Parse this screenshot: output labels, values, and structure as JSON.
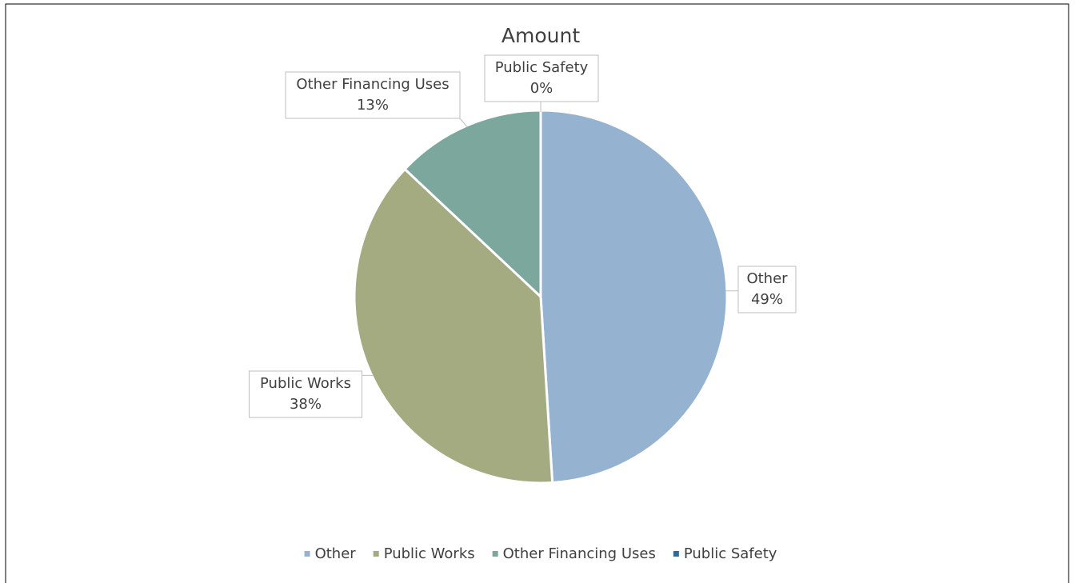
{
  "chart_data": {
    "type": "pie",
    "title": "Amount",
    "categories": [
      "Other",
      "Public Works",
      "Other Financing Uses",
      "Public Safety"
    ],
    "values": [
      49,
      38,
      13,
      0
    ],
    "value_labels": [
      "49%",
      "38%",
      "13%",
      "0%"
    ],
    "colors": [
      "#95b3d0",
      "#a4ab80",
      "#7ba79d",
      "#2e6b97"
    ],
    "legend": "bottom"
  }
}
